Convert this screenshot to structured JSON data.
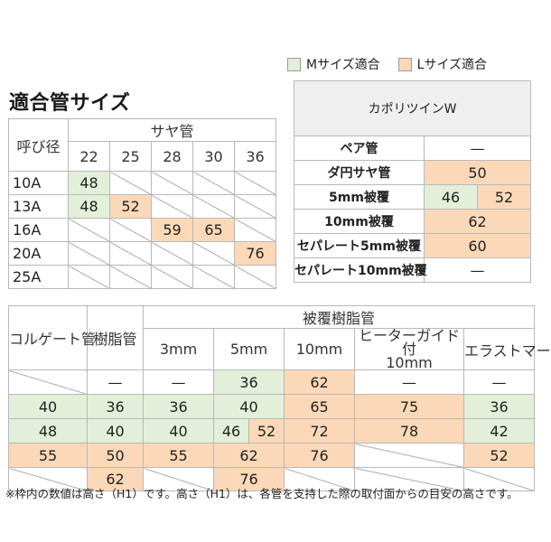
{
  "legend": {
    "m_label": "Mサイズ適合",
    "l_label": "Lサイズ適合",
    "m_color": "#e2efd9",
    "l_color": "#fbd9b8"
  },
  "title": "適合管サイズ",
  "table1": {
    "corner": "呼び径",
    "group_header": "サヤ管",
    "sizes": [
      "22",
      "25",
      "28",
      "30",
      "36"
    ],
    "rows": [
      {
        "label": "10A",
        "cells": [
          {
            "v": "48",
            "c": "g"
          },
          {
            "v": "",
            "c": "e"
          },
          {
            "v": "",
            "c": "e"
          },
          {
            "v": "",
            "c": "e"
          },
          {
            "v": "",
            "c": "e"
          }
        ]
      },
      {
        "label": "13A",
        "cells": [
          {
            "v": "48",
            "c": "g"
          },
          {
            "v": "52",
            "c": "o"
          },
          {
            "v": "",
            "c": "e"
          },
          {
            "v": "",
            "c": "e"
          },
          {
            "v": "",
            "c": "e"
          }
        ]
      },
      {
        "label": "16A",
        "cells": [
          {
            "v": "",
            "c": "e"
          },
          {
            "v": "",
            "c": "e"
          },
          {
            "v": "59",
            "c": "o"
          },
          {
            "v": "65",
            "c": "o"
          },
          {
            "v": "",
            "c": "e"
          }
        ]
      },
      {
        "label": "20A",
        "cells": [
          {
            "v": "",
            "c": "e"
          },
          {
            "v": "",
            "c": "e"
          },
          {
            "v": "",
            "c": "e"
          },
          {
            "v": "",
            "c": "e"
          },
          {
            "v": "76",
            "c": "o"
          }
        ]
      },
      {
        "label": "25A",
        "cells": [
          {
            "v": "",
            "c": "e"
          },
          {
            "v": "",
            "c": "e"
          },
          {
            "v": "",
            "c": "e"
          },
          {
            "v": "",
            "c": "e"
          },
          {
            "v": "",
            "c": "e"
          }
        ]
      }
    ]
  },
  "table2": {
    "header": "カポリツインW",
    "rows": [
      {
        "label": "ペア管",
        "cells": [
          {
            "v": "—",
            "c": "",
            "span": 2
          }
        ]
      },
      {
        "label": "ダ円サヤ管",
        "cells": [
          {
            "v": "50",
            "c": "o",
            "span": 2
          }
        ]
      },
      {
        "label": "5mm被覆",
        "cells": [
          {
            "v": "46",
            "c": "g"
          },
          {
            "v": "52",
            "c": "o"
          }
        ]
      },
      {
        "label": "10mm被覆",
        "cells": [
          {
            "v": "62",
            "c": "o",
            "span": 2
          }
        ]
      },
      {
        "label": "セパレート5mm被覆",
        "cells": [
          {
            "v": "60",
            "c": "o",
            "span": 2
          }
        ]
      },
      {
        "label": "セパレート10mm被覆",
        "cells": [
          {
            "v": "—",
            "c": "",
            "span": 2
          }
        ]
      }
    ]
  },
  "table3": {
    "col1": "コルゲート管",
    "col2": "樹脂管",
    "group_header": "被覆樹脂管",
    "sub_headers": [
      "3mm",
      "5mm",
      "10mm",
      "ヒーターガイド付\n10mm",
      "エラストマー"
    ],
    "rows": [
      {
        "corr": {
          "v": "",
          "c": "e"
        },
        "resin": {
          "v": "—",
          "c": ""
        },
        "cells": [
          {
            "v": "—",
            "c": ""
          },
          {
            "v": "36",
            "c": "g"
          },
          {
            "v": "62",
            "c": "o"
          },
          {
            "v": "—",
            "c": ""
          },
          {
            "v": "—",
            "c": ""
          }
        ]
      },
      {
        "corr": {
          "v": "40",
          "c": "g"
        },
        "resin": {
          "v": "36",
          "c": "g"
        },
        "cells": [
          {
            "v": "36",
            "c": "g"
          },
          {
            "v": "40",
            "c": "g"
          },
          {
            "v": "65",
            "c": "o"
          },
          {
            "v": "75",
            "c": "o"
          },
          {
            "v": "36",
            "c": "g"
          }
        ]
      },
      {
        "corr": {
          "v": "48",
          "c": "g"
        },
        "resin": {
          "v": "40",
          "c": "g"
        },
        "cells": [
          {
            "v": "40",
            "c": "g"
          },
          {
            "split": true,
            "a": "46",
            "b": "52"
          },
          {
            "v": "72",
            "c": "o"
          },
          {
            "v": "78",
            "c": "o"
          },
          {
            "v": "42",
            "c": "g"
          }
        ]
      },
      {
        "corr": {
          "v": "55",
          "c": "o"
        },
        "resin": {
          "v": "50",
          "c": "o"
        },
        "cells": [
          {
            "v": "55",
            "c": "o"
          },
          {
            "v": "62",
            "c": "o"
          },
          {
            "v": "76",
            "c": "o"
          },
          {
            "v": "",
            "c": "e"
          },
          {
            "v": "52",
            "c": "o"
          }
        ]
      },
      {
        "corr": {
          "v": "",
          "c": "e"
        },
        "resin": {
          "v": "62",
          "c": "o"
        },
        "cells": [
          {
            "v": "",
            "c": "e"
          },
          {
            "v": "76",
            "c": "o"
          },
          {
            "v": "",
            "c": "e"
          },
          {
            "v": "",
            "c": "e"
          },
          {
            "v": "",
            "c": "e"
          }
        ]
      }
    ]
  },
  "note": "※枠内の数値は高さ（H1）です。高さ（H1）は、各管を支持した際の取付面からの目安の高さです。"
}
